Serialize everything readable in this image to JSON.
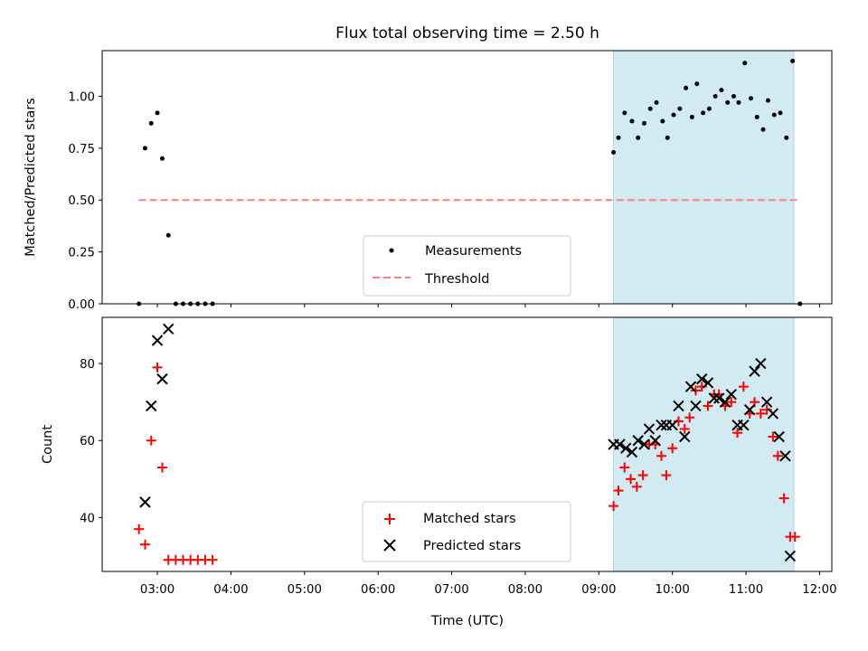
{
  "chart_data": [
    {
      "type": "scatter",
      "title": "Flux total observing time = 2.50 h",
      "xlabel": "",
      "ylabel": "Matched/Predicted stars",
      "ylim": [
        0,
        1.22
      ],
      "yticks": [
        "0.00",
        "0.25",
        "0.50",
        "0.75",
        "1.00"
      ],
      "ytick_values": [
        0,
        0.25,
        0.5,
        0.75,
        1.0
      ],
      "xlim": [
        "02:15",
        "12:10"
      ],
      "shaded_region": [
        "09:12",
        "11:39"
      ],
      "shaded_color": "#add8e6",
      "threshold_line": {
        "y": 0.5,
        "x": [
          "02:45",
          "11:44"
        ],
        "color": "#ff7f7f"
      },
      "legend": [
        "Measurements",
        "Threshold"
      ],
      "legend_position": "lower-center",
      "series": [
        {
          "name": "Measurements",
          "color": "#000000",
          "marker": "dot",
          "points": [
            [
              "02:45",
              0.0
            ],
            [
              "02:50",
              0.75
            ],
            [
              "02:55",
              0.87
            ],
            [
              "03:00",
              0.92
            ],
            [
              "03:04",
              0.7
            ],
            [
              "03:09",
              0.33
            ],
            [
              "03:15",
              0.0
            ],
            [
              "03:21",
              0.0
            ],
            [
              "03:27",
              0.0
            ],
            [
              "03:33",
              0.0
            ],
            [
              "03:39",
              0.0
            ],
            [
              "03:45",
              0.0
            ],
            [
              "09:12",
              0.73
            ],
            [
              "09:16",
              0.8
            ],
            [
              "09:21",
              0.92
            ],
            [
              "09:27",
              0.88
            ],
            [
              "09:32",
              0.8
            ],
            [
              "09:37",
              0.87
            ],
            [
              "09:42",
              0.94
            ],
            [
              "09:47",
              0.97
            ],
            [
              "09:52",
              0.88
            ],
            [
              "09:56",
              0.8
            ],
            [
              "10:01",
              0.91
            ],
            [
              "10:06",
              0.94
            ],
            [
              "10:11",
              1.04
            ],
            [
              "10:16",
              0.9
            ],
            [
              "10:20",
              1.06
            ],
            [
              "10:25",
              0.92
            ],
            [
              "10:30",
              0.94
            ],
            [
              "10:35",
              1.0
            ],
            [
              "10:40",
              1.03
            ],
            [
              "10:45",
              0.97
            ],
            [
              "10:50",
              1.0
            ],
            [
              "10:54",
              0.97
            ],
            [
              "10:59",
              1.16
            ],
            [
              "11:04",
              0.99
            ],
            [
              "11:09",
              0.9
            ],
            [
              "11:14",
              0.84
            ],
            [
              "11:18",
              0.98
            ],
            [
              "11:23",
              0.91
            ],
            [
              "11:28",
              0.92
            ],
            [
              "11:33",
              0.8
            ],
            [
              "11:38",
              1.17
            ],
            [
              "11:44",
              0.0
            ]
          ]
        }
      ]
    },
    {
      "type": "scatter",
      "title": "",
      "xlabel": "Time (UTC)",
      "ylabel": "Count",
      "ylim": [
        26,
        92
      ],
      "yticks": [
        "40",
        "60",
        "80"
      ],
      "ytick_values": [
        40,
        60,
        80
      ],
      "xlim": [
        "02:15",
        "12:10"
      ],
      "xticks": [
        "03:00",
        "04:00",
        "05:00",
        "06:00",
        "07:00",
        "08:00",
        "09:00",
        "10:00",
        "11:00",
        "12:00"
      ],
      "shaded_region": [
        "09:12",
        "11:39"
      ],
      "shaded_color": "#add8e6",
      "legend": [
        "Matched stars",
        "Predicted stars"
      ],
      "legend_position": "lower-center",
      "series": [
        {
          "name": "Matched stars",
          "color": "#ff0000",
          "marker": "plus",
          "points": [
            [
              "02:45",
              37
            ],
            [
              "02:50",
              33
            ],
            [
              "02:55",
              60
            ],
            [
              "03:00",
              79
            ],
            [
              "03:04",
              53
            ],
            [
              "03:09",
              29
            ],
            [
              "03:15",
              29
            ],
            [
              "03:21",
              29
            ],
            [
              "03:27",
              29
            ],
            [
              "03:33",
              29
            ],
            [
              "03:39",
              29
            ],
            [
              "03:45",
              29
            ],
            [
              "09:12",
              43
            ],
            [
              "09:16",
              47
            ],
            [
              "09:21",
              53
            ],
            [
              "09:26",
              50
            ],
            [
              "09:31",
              48
            ],
            [
              "09:36",
              51
            ],
            [
              "09:41",
              59
            ],
            [
              "09:46",
              59
            ],
            [
              "09:51",
              56
            ],
            [
              "09:55",
              51
            ],
            [
              "10:00",
              58
            ],
            [
              "10:05",
              65
            ],
            [
              "10:10",
              63
            ],
            [
              "10:14",
              66
            ],
            [
              "10:19",
              73
            ],
            [
              "10:24",
              74
            ],
            [
              "10:29",
              69
            ],
            [
              "10:34",
              72
            ],
            [
              "10:38",
              72
            ],
            [
              "10:43",
              69
            ],
            [
              "10:48",
              70
            ],
            [
              "10:53",
              62
            ],
            [
              "10:58",
              74
            ],
            [
              "11:03",
              67
            ],
            [
              "11:07",
              70
            ],
            [
              "11:12",
              67
            ],
            [
              "11:17",
              68
            ],
            [
              "11:22",
              61
            ],
            [
              "11:26",
              56
            ],
            [
              "11:31",
              45
            ],
            [
              "11:36",
              35
            ],
            [
              "11:40",
              35
            ]
          ]
        },
        {
          "name": "Predicted stars",
          "color": "#000000",
          "marker": "x",
          "points": [
            [
              "02:50",
              44
            ],
            [
              "02:55",
              69
            ],
            [
              "03:00",
              86
            ],
            [
              "03:04",
              76
            ],
            [
              "03:09",
              89
            ],
            [
              "09:12",
              59
            ],
            [
              "09:17",
              59
            ],
            [
              "09:22",
              58
            ],
            [
              "09:27",
              57
            ],
            [
              "09:32",
              60
            ],
            [
              "09:37",
              59
            ],
            [
              "09:41",
              63
            ],
            [
              "09:46",
              60
            ],
            [
              "09:51",
              64
            ],
            [
              "09:55",
              64
            ],
            [
              "10:00",
              64
            ],
            [
              "10:05",
              69
            ],
            [
              "10:10",
              61
            ],
            [
              "10:15",
              74
            ],
            [
              "10:19",
              69
            ],
            [
              "10:24",
              76
            ],
            [
              "10:29",
              75
            ],
            [
              "10:34",
              71
            ],
            [
              "10:38",
              71
            ],
            [
              "10:43",
              70
            ],
            [
              "10:48",
              72
            ],
            [
              "10:53",
              64
            ],
            [
              "10:58",
              64
            ],
            [
              "11:03",
              68
            ],
            [
              "11:07",
              78
            ],
            [
              "11:12",
              80
            ],
            [
              "11:17",
              70
            ],
            [
              "11:22",
              67
            ],
            [
              "11:27",
              61
            ],
            [
              "11:32",
              56
            ],
            [
              "11:36",
              30
            ]
          ]
        }
      ]
    }
  ]
}
